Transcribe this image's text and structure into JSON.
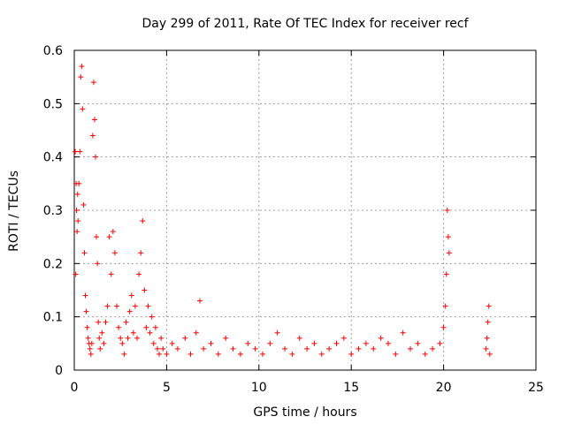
{
  "chart_data": {
    "type": "scatter",
    "title": "Day 299 of 2011, Rate Of TEC Index for receiver recf",
    "xlabel": "GPS time / hours",
    "ylabel": "ROTI / TECUs",
    "xlim": [
      0,
      25
    ],
    "ylim": [
      0,
      0.6
    ],
    "x_ticks": [
      0,
      5,
      10,
      15,
      20,
      25
    ],
    "x_tick_labels": [
      "0",
      "5",
      "10",
      "15",
      "20",
      "25"
    ],
    "y_ticks": [
      0,
      0.1,
      0.2,
      0.3,
      0.4,
      0.5,
      0.6
    ],
    "y_tick_labels": [
      "0",
      "0.1",
      "0.2",
      "0.3",
      "0.4",
      "0.5",
      "0.6"
    ],
    "grid": true,
    "marker": "plus",
    "color": "#ff0000",
    "series": [
      {
        "x": [
          0.05,
          0.08,
          0.1,
          0.12,
          0.15,
          0.18,
          0.2,
          0.25,
          0.3,
          0.35,
          0.4,
          0.45,
          0.5,
          0.55,
          0.6,
          0.65,
          0.7,
          0.75,
          0.8,
          0.85,
          0.9,
          0.95,
          1.0,
          1.05,
          1.1,
          1.15,
          1.2,
          1.25,
          1.3,
          1.35,
          1.4,
          1.5,
          1.6,
          1.7,
          1.8,
          1.9,
          2.0,
          2.1,
          2.2,
          2.3,
          2.4,
          2.5,
          2.6,
          2.7,
          2.8,
          2.9,
          3.0,
          3.1,
          3.2,
          3.3,
          3.4,
          3.5,
          3.6,
          3.7,
          3.8,
          3.9,
          4.0,
          4.1,
          4.2,
          4.3,
          4.4,
          4.5,
          4.6,
          4.7,
          4.8,
          5.0,
          5.3,
          5.6,
          6.0,
          6.3,
          6.6,
          6.8,
          7.0,
          7.4,
          7.8,
          8.2,
          8.6,
          9.0,
          9.4,
          9.8,
          10.2,
          10.6,
          11.0,
          11.4,
          11.8,
          12.2,
          12.6,
          13.0,
          13.4,
          13.8,
          14.2,
          14.6,
          15.0,
          15.4,
          15.8,
          16.2,
          16.6,
          17.0,
          17.4,
          17.8,
          18.2,
          18.6,
          19.0,
          19.4,
          19.8,
          20.0,
          20.1,
          20.15,
          20.2,
          20.25,
          20.3,
          22.3,
          22.35,
          22.4,
          22.45,
          22.5
        ],
        "y": [
          0.41,
          0.18,
          0.35,
          0.3,
          0.26,
          0.33,
          0.28,
          0.35,
          0.41,
          0.55,
          0.57,
          0.49,
          0.31,
          0.22,
          0.14,
          0.11,
          0.08,
          0.06,
          0.05,
          0.04,
          0.03,
          0.05,
          0.44,
          0.54,
          0.47,
          0.4,
          0.25,
          0.2,
          0.09,
          0.06,
          0.04,
          0.07,
          0.05,
          0.09,
          0.12,
          0.25,
          0.18,
          0.26,
          0.22,
          0.12,
          0.08,
          0.06,
          0.05,
          0.03,
          0.09,
          0.06,
          0.11,
          0.14,
          0.07,
          0.12,
          0.06,
          0.18,
          0.22,
          0.28,
          0.15,
          0.08,
          0.12,
          0.07,
          0.1,
          0.05,
          0.08,
          0.04,
          0.03,
          0.06,
          0.04,
          0.03,
          0.05,
          0.04,
          0.06,
          0.03,
          0.07,
          0.13,
          0.04,
          0.05,
          0.03,
          0.06,
          0.04,
          0.03,
          0.05,
          0.04,
          0.03,
          0.05,
          0.07,
          0.04,
          0.03,
          0.06,
          0.04,
          0.05,
          0.03,
          0.04,
          0.05,
          0.06,
          0.03,
          0.04,
          0.05,
          0.04,
          0.06,
          0.05,
          0.03,
          0.07,
          0.04,
          0.05,
          0.03,
          0.04,
          0.05,
          0.08,
          0.12,
          0.18,
          0.3,
          0.25,
          0.22,
          0.04,
          0.06,
          0.09,
          0.12,
          0.03
        ]
      }
    ]
  }
}
